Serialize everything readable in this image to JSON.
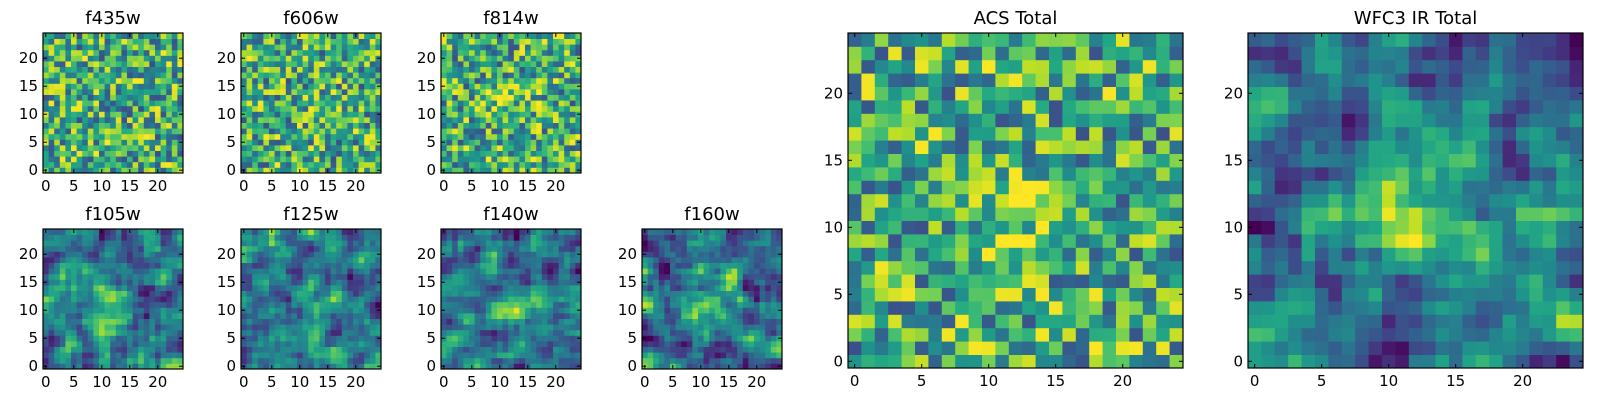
{
  "figure": {
    "colormap": "viridis",
    "colors": {
      "low": "#440154",
      "mid": "#21918c",
      "high": "#fde725"
    }
  },
  "chart_data": [
    {
      "type": "heatmap",
      "id": "f435w",
      "title": "f435w",
      "grid": [
        25,
        25
      ],
      "xlim": [
        0,
        24
      ],
      "ylim": [
        0,
        24
      ],
      "xticks": [
        0,
        5,
        10,
        15,
        20
      ],
      "yticks": [
        0,
        5,
        10,
        15,
        20
      ],
      "source": 0
    },
    {
      "type": "heatmap",
      "id": "f606w",
      "title": "f606w",
      "grid": [
        25,
        25
      ],
      "xlim": [
        0,
        24
      ],
      "ylim": [
        0,
        24
      ],
      "xticks": [
        0,
        5,
        10,
        15,
        20
      ],
      "yticks": [
        0,
        5,
        10,
        15,
        20
      ],
      "source": 0
    },
    {
      "type": "heatmap",
      "id": "f814w",
      "title": "f814w",
      "grid": [
        25,
        25
      ],
      "xlim": [
        0,
        24
      ],
      "ylim": [
        0,
        24
      ],
      "xticks": [
        0,
        5,
        10,
        15,
        20
      ],
      "yticks": [
        0,
        5,
        10,
        15,
        20
      ],
      "source": 0.15
    },
    {
      "type": "heatmap",
      "id": "f105w",
      "title": "f105w",
      "grid": [
        25,
        25
      ],
      "xlim": [
        0,
        24
      ],
      "ylim": [
        0,
        24
      ],
      "xticks": [
        0,
        5,
        10,
        15,
        20
      ],
      "yticks": [
        0,
        5,
        10,
        15,
        20
      ],
      "source": 0.55
    },
    {
      "type": "heatmap",
      "id": "f125w",
      "title": "f125w",
      "grid": [
        25,
        25
      ],
      "xlim": [
        0,
        24
      ],
      "ylim": [
        0,
        24
      ],
      "xticks": [
        0,
        5,
        10,
        15,
        20
      ],
      "yticks": [
        0,
        5,
        10,
        15,
        20
      ],
      "source": 0.5
    },
    {
      "type": "heatmap",
      "id": "f140w",
      "title": "f140w",
      "grid": [
        25,
        25
      ],
      "xlim": [
        0,
        24
      ],
      "ylim": [
        0,
        24
      ],
      "xticks": [
        0,
        5,
        10,
        15,
        20
      ],
      "yticks": [
        0,
        5,
        10,
        15,
        20
      ],
      "source": 0.45
    },
    {
      "type": "heatmap",
      "id": "f160w",
      "title": "f160w",
      "grid": [
        25,
        25
      ],
      "xlim": [
        0,
        24
      ],
      "ylim": [
        0,
        24
      ],
      "xticks": [
        0,
        5,
        10,
        15,
        20
      ],
      "yticks": [
        0,
        5,
        10,
        15,
        20
      ],
      "source": 0.45
    },
    {
      "type": "heatmap",
      "id": "acs_total",
      "title": "ACS Total",
      "grid": [
        25,
        25
      ],
      "xlim": [
        0,
        24
      ],
      "ylim": [
        0,
        24
      ],
      "xticks": [
        0,
        5,
        10,
        15,
        20
      ],
      "yticks": [
        0,
        5,
        10,
        15,
        20
      ],
      "source": 0.25
    },
    {
      "type": "heatmap",
      "id": "wfc3_ir_total",
      "title": "WFC3 IR Total",
      "grid": [
        25,
        25
      ],
      "xlim": [
        0,
        24
      ],
      "ylim": [
        0,
        24
      ],
      "xticks": [
        0,
        5,
        10,
        15,
        20
      ],
      "yticks": [
        0,
        5,
        10,
        15,
        20
      ],
      "source": 0.75
    }
  ]
}
